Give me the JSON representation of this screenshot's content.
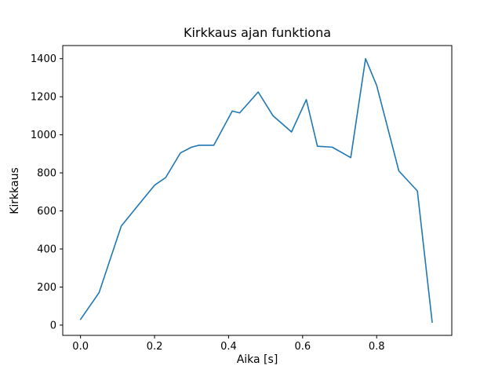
{
  "chart_data": {
    "type": "line",
    "title": "Kirkkaus ajan funktiona",
    "xlabel": "Aika [s]",
    "ylabel": "Kirkkaus",
    "x": [
      0.0,
      0.05,
      0.11,
      0.16,
      0.2,
      0.23,
      0.27,
      0.3,
      0.32,
      0.36,
      0.41,
      0.43,
      0.48,
      0.52,
      0.57,
      0.61,
      0.64,
      0.68,
      0.73,
      0.77,
      0.8,
      0.86,
      0.91,
      0.95
    ],
    "y": [
      30,
      170,
      520,
      640,
      735,
      775,
      905,
      935,
      945,
      945,
      1125,
      1115,
      1225,
      1100,
      1015,
      1185,
      940,
      935,
      880,
      1400,
      1260,
      810,
      705,
      15
    ],
    "xticks": [
      0.0,
      0.2,
      0.4,
      0.6,
      0.8
    ],
    "xtick_labels": [
      "0.0",
      "0.2",
      "0.4",
      "0.6",
      "0.8"
    ],
    "yticks": [
      0,
      200,
      400,
      600,
      800,
      1000,
      1200,
      1400
    ],
    "ytick_labels": [
      "0",
      "200",
      "400",
      "600",
      "800",
      "1000",
      "1200",
      "1400"
    ],
    "xlim": [
      -0.048,
      1.003
    ],
    "ylim": [
      -54,
      1469
    ],
    "line_color": "#1f77b4",
    "axis_color": "#000000",
    "grid": false
  }
}
